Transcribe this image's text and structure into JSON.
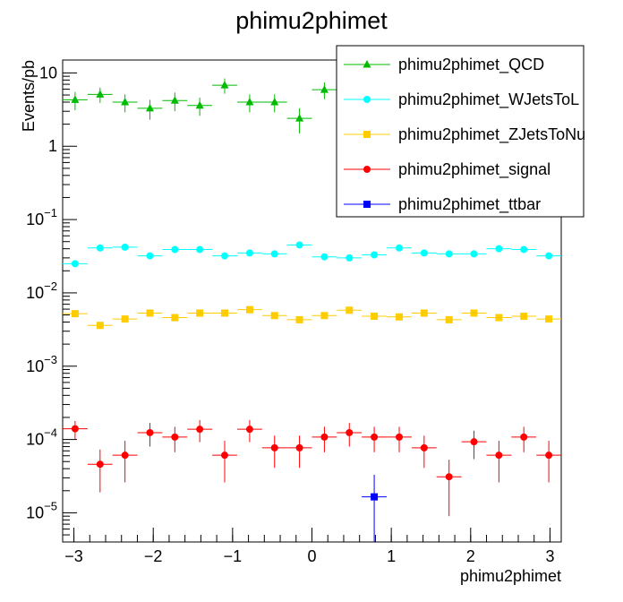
{
  "chart_data": {
    "type": "scatter",
    "title": "phimu2phimet",
    "xlabel": "phimu2phimet",
    "ylabel": "Events/pb",
    "xlim": [
      -3.1416,
      3.1416
    ],
    "ylim": [
      4e-06,
      15
    ],
    "yscale": "log",
    "xticks": [
      -3,
      -2,
      -1,
      0,
      1,
      2,
      3
    ],
    "xtick_labels": [
      "−3",
      "−2",
      "−1",
      "0",
      "1",
      "2",
      "3"
    ],
    "yticks": [
      {
        "value": 10,
        "base": "10",
        "exp": ""
      },
      {
        "value": 1,
        "base": "1",
        "exp": ""
      },
      {
        "value": 0.1,
        "base": "10",
        "exp": "−1"
      },
      {
        "value": 0.01,
        "base": "10",
        "exp": "−2"
      },
      {
        "value": 0.001,
        "base": "10",
        "exp": "−3"
      },
      {
        "value": 0.0001,
        "base": "10",
        "exp": "−4"
      },
      {
        "value": 1e-05,
        "base": "10",
        "exp": "−5"
      }
    ],
    "bin_width": 0.3142,
    "x": [
      -2.985,
      -2.67,
      -2.356,
      -2.042,
      -1.728,
      -1.414,
      -1.1,
      -0.785,
      -0.471,
      -0.157,
      0.157,
      0.471,
      0.785,
      1.1,
      1.414,
      1.728,
      2.042,
      2.356,
      2.67,
      2.985
    ],
    "legend_position": "top-right",
    "series": [
      {
        "name": "phimu2phimet_QCD",
        "marker": "triangle",
        "color": "#00bb00",
        "values": [
          4.3,
          5.1,
          4.0,
          3.3,
          4.2,
          3.6,
          6.8,
          4.0,
          4.0,
          2.4,
          5.9,
          null,
          null,
          null,
          null,
          null,
          null,
          null,
          null,
          null
        ],
        "errors": [
          1.2,
          1.2,
          1.1,
          1.0,
          1.2,
          1.0,
          1.6,
          1.1,
          1.1,
          0.9,
          1.5,
          null,
          null,
          null,
          null,
          null,
          null,
          null,
          null,
          null
        ]
      },
      {
        "name": "phimu2phimet_WJetsToL",
        "marker": "circle",
        "color": "#00ffff",
        "values": [
          0.025,
          0.041,
          0.042,
          0.032,
          0.039,
          0.039,
          0.032,
          0.035,
          0.034,
          0.045,
          0.031,
          0.03,
          0.033,
          0.041,
          0.035,
          0.034,
          0.034,
          0.04,
          0.039,
          0.032
        ],
        "errors": [
          0.002,
          0.002,
          0.002,
          0.002,
          0.002,
          0.002,
          0.002,
          0.002,
          0.002,
          0.002,
          0.002,
          0.002,
          0.002,
          0.002,
          0.002,
          0.002,
          0.002,
          0.002,
          0.002,
          0.002
        ]
      },
      {
        "name": "phimu2phimet_ZJetsToNu",
        "marker": "square",
        "color": "#ffcc00",
        "values": [
          0.0052,
          0.0036,
          0.0044,
          0.0053,
          0.0046,
          0.0053,
          0.0053,
          0.0059,
          0.0049,
          0.0043,
          0.0049,
          0.0058,
          0.0048,
          0.0047,
          0.0053,
          0.0043,
          0.0053,
          0.0046,
          0.0048,
          0.0044
        ],
        "errors": [
          0.0003,
          0.0003,
          0.0003,
          0.0003,
          0.0003,
          0.0003,
          0.0003,
          0.0003,
          0.0003,
          0.0003,
          0.0003,
          0.0003,
          0.0003,
          0.0003,
          0.0003,
          0.0003,
          0.0003,
          0.0003,
          0.0003,
          0.0003
        ]
      },
      {
        "name": "phimu2phimet_signal",
        "marker": "circle",
        "color": "#ff0000",
        "values": [
          0.00014,
          4.6e-05,
          6.1e-05,
          0.000124,
          0.000108,
          0.000138,
          6.1e-05,
          0.000138,
          7.7e-05,
          7.7e-05,
          0.000108,
          0.000124,
          0.000108,
          0.000108,
          7.7e-05,
          3.1e-05,
          9.3e-05,
          6.1e-05,
          0.000108,
          6.1e-05
        ],
        "errors": [
          3.9e-05,
          2.7e-05,
          3.5e-05,
          4.4e-05,
          4.1e-05,
          4.6e-05,
          3.5e-05,
          4.6e-05,
          3.6e-05,
          3.6e-05,
          4.1e-05,
          4.4e-05,
          4.1e-05,
          4.1e-05,
          3.6e-05,
          2.2e-05,
          3.9e-05,
          3.5e-05,
          4.1e-05,
          3.5e-05
        ]
      },
      {
        "name": "phimu2phimet_ttbar",
        "marker": "square",
        "color": "#0000ff",
        "values": [
          null,
          null,
          null,
          null,
          null,
          null,
          null,
          null,
          null,
          null,
          null,
          null,
          1.65e-05,
          null,
          null,
          null,
          null,
          null,
          null,
          null
        ],
        "errors": [
          null,
          null,
          null,
          null,
          null,
          null,
          null,
          null,
          null,
          null,
          null,
          null,
          1.65e-05,
          null,
          null,
          null,
          null,
          null,
          null,
          null
        ]
      }
    ]
  }
}
